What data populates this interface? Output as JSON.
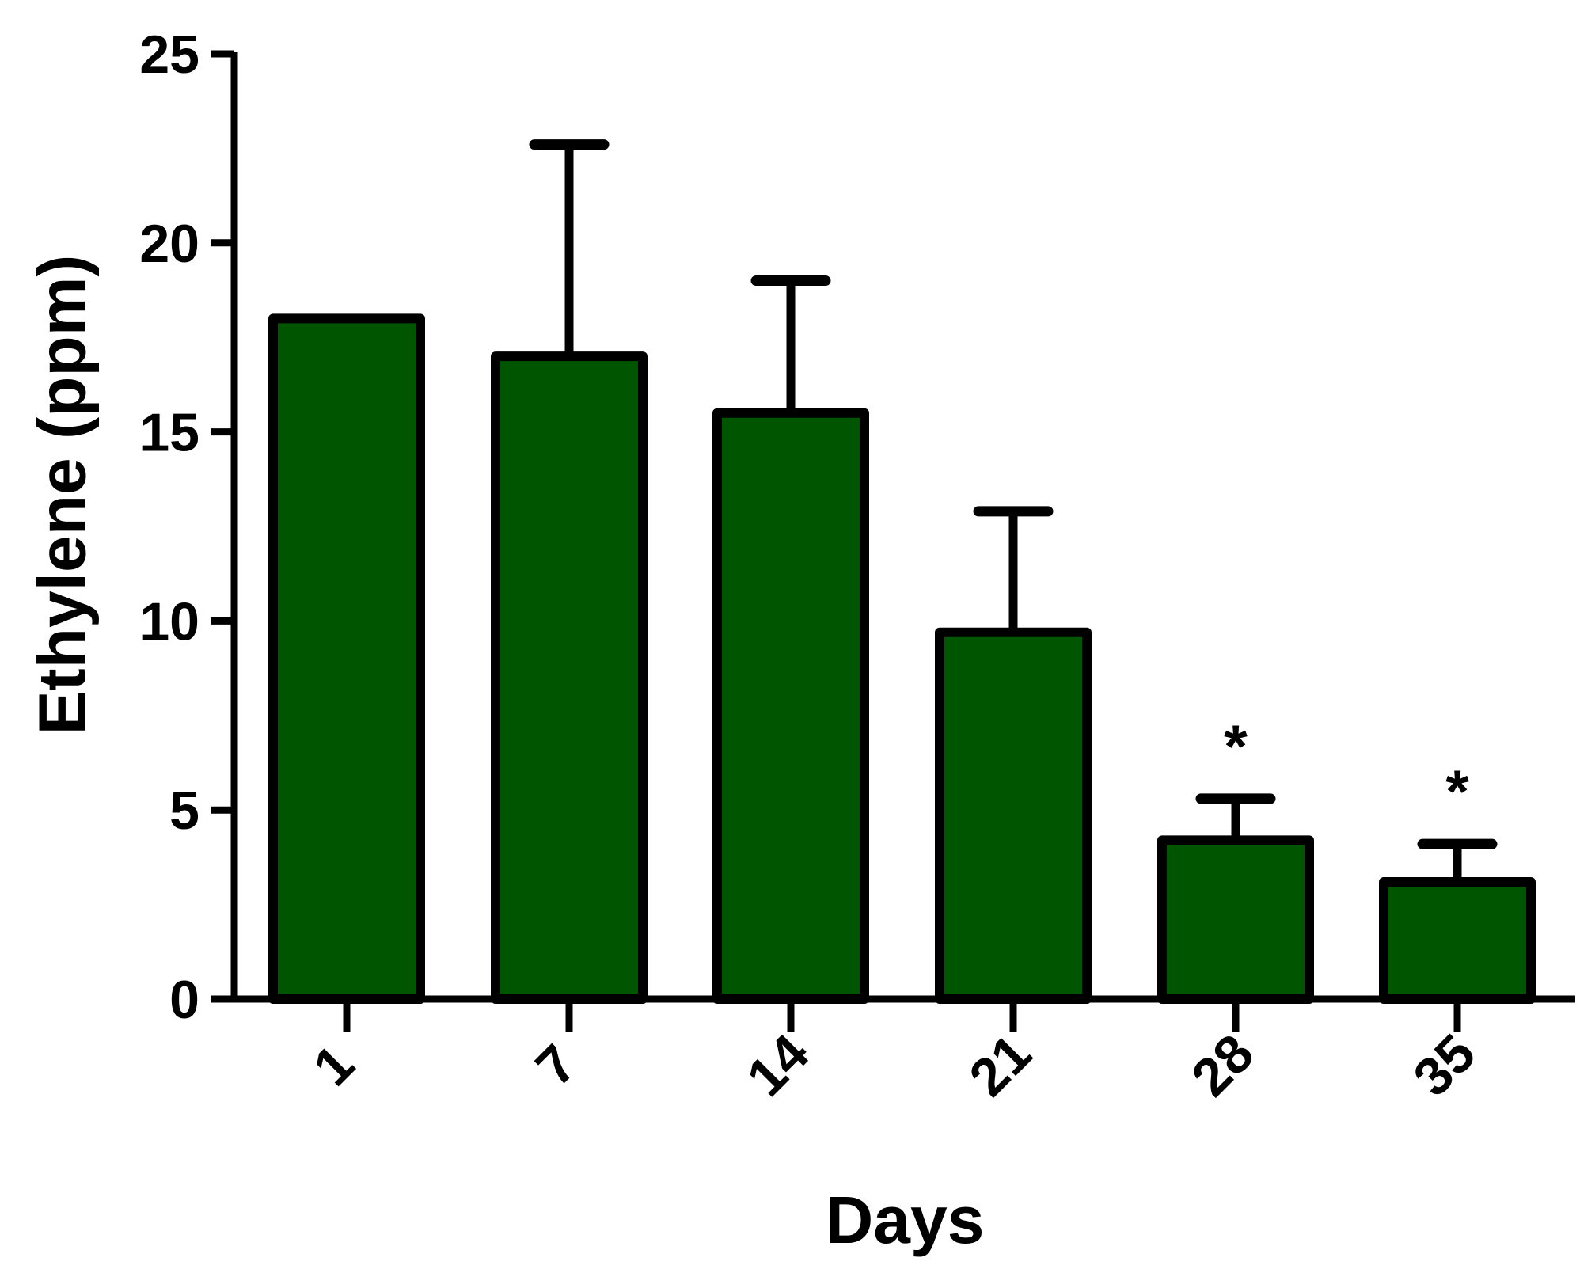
{
  "chart_data": {
    "type": "bar",
    "categories": [
      "1",
      "7",
      "14",
      "21",
      "28",
      "35"
    ],
    "values": [
      18.0,
      17.0,
      15.5,
      9.7,
      4.2,
      3.1
    ],
    "error_upper": [
      18.0,
      22.6,
      19.0,
      12.9,
      5.3,
      4.1
    ],
    "annotations": [
      "",
      "",
      "",
      "",
      "*",
      "*"
    ],
    "xlabel": "Days",
    "ylabel": "Ethylene (ppm)",
    "ylim": [
      0,
      25
    ],
    "yticks": [
      0,
      5,
      10,
      15,
      20,
      25
    ],
    "ytick_labels": [
      "0",
      "5",
      "10",
      "15",
      "20",
      "25"
    ],
    "grid": false,
    "legend": "none",
    "bar_color": "#005500",
    "edge_color": "#000000"
  }
}
